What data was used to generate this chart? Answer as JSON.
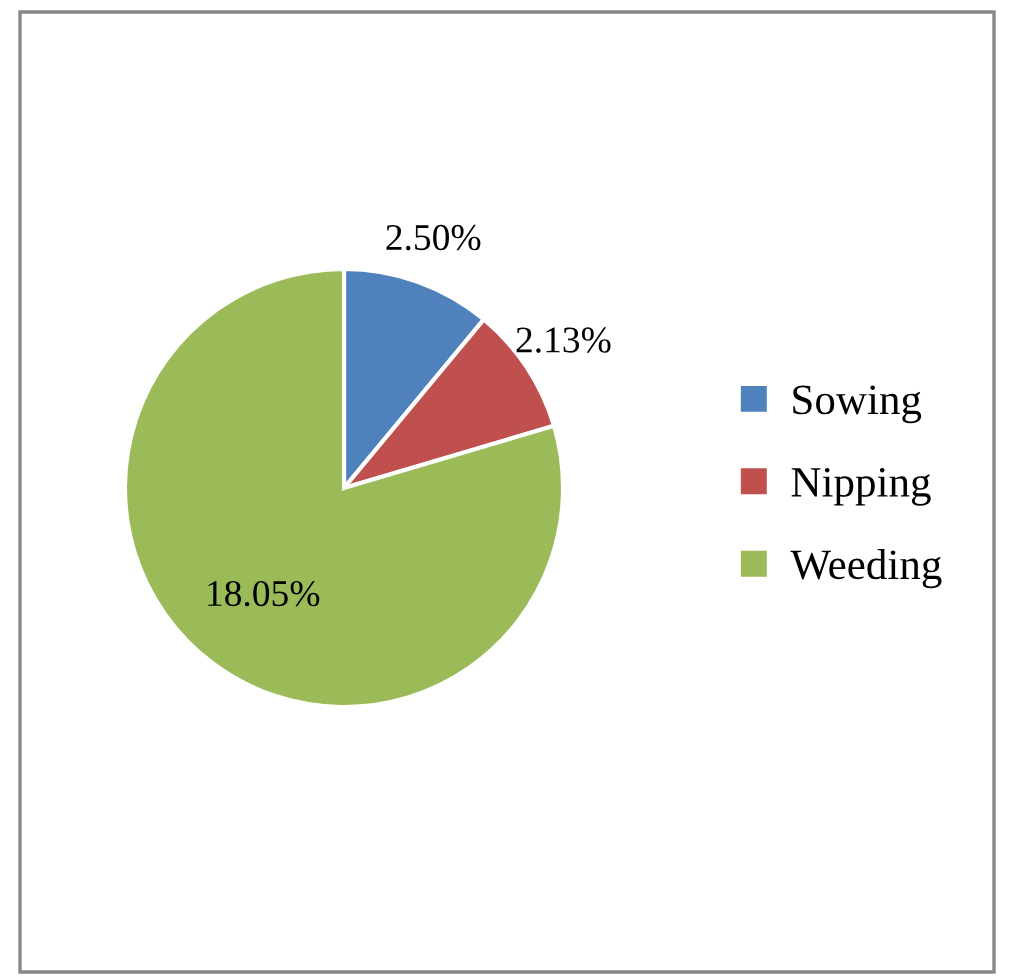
{
  "chart_data": {
    "type": "pie",
    "categories": [
      "Sowing",
      "Nipping",
      "Weeding"
    ],
    "values": [
      2.5,
      2.13,
      18.05
    ],
    "colors": [
      "#4f81bd",
      "#c0504d",
      "#9bbb59"
    ],
    "value_labels": [
      "2.50%",
      "2.13%",
      "18.05%"
    ],
    "legend": "right"
  }
}
